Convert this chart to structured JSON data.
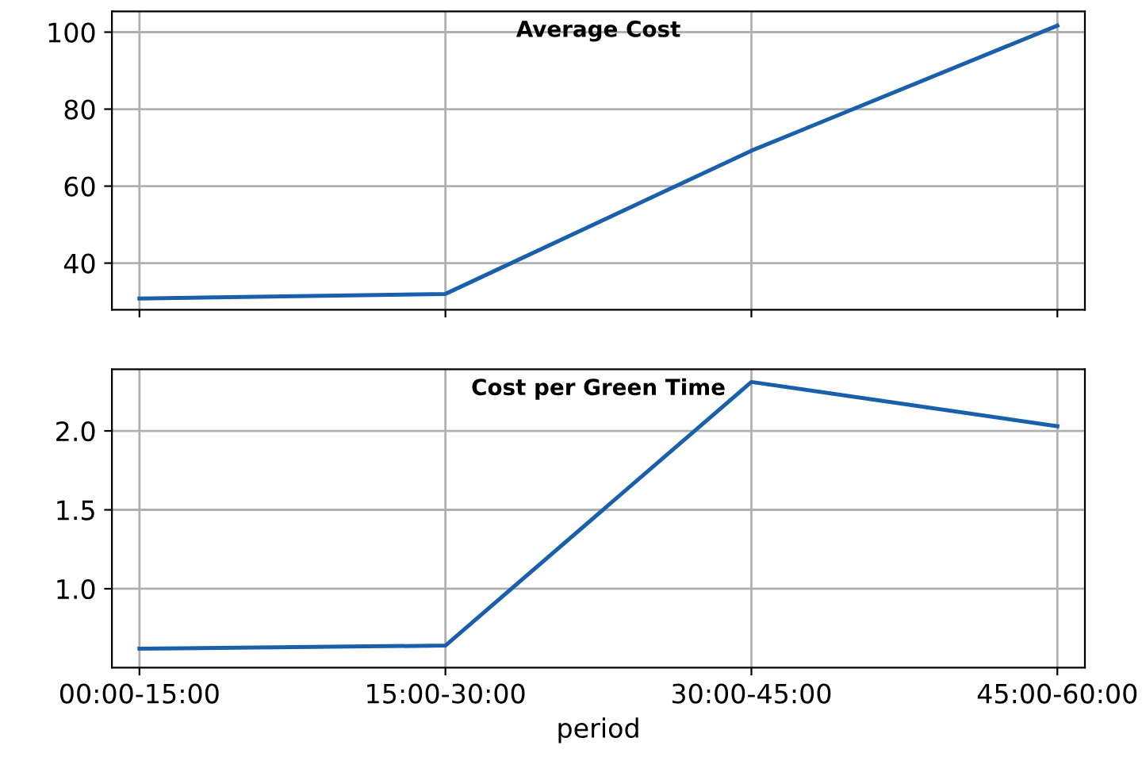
{
  "chart_data": [
    {
      "type": "line",
      "title": "Average Cost",
      "categories": [
        null,
        null,
        null,
        null
      ],
      "series": [
        {
          "color": "#1a5fac",
          "values": [
            30.8,
            32,
            69.2,
            101.7
          ]
        }
      ],
      "ylim": [
        27.9,
        105.4
      ],
      "yticks": [
        40,
        60,
        80,
        100
      ],
      "grid": true,
      "tick_labels": "y"
    },
    {
      "type": "line",
      "title": "Cost per Green Time",
      "xlabel": "period",
      "categories": [
        "00:00-15:00",
        "15:00-30:00",
        "30:00-45:00",
        "45:00-60:00"
      ],
      "series": [
        {
          "color": "#1a5fac",
          "values": [
            0.62,
            0.64,
            2.31,
            2.03
          ]
        }
      ],
      "ylim": [
        0.5,
        2.39
      ],
      "yticks": [
        {
          "value": 1.0,
          "label": "1.0"
        },
        1.5,
        {
          "value": 2.0,
          "label": "2.0"
        }
      ],
      "grid": true
    }
  ]
}
